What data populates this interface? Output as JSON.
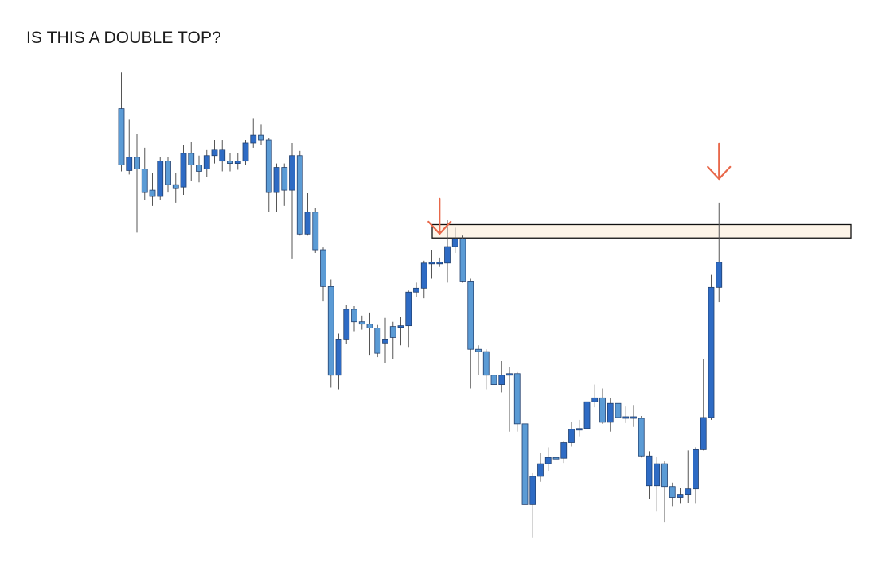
{
  "title": "IS THIS A DOUBLE TOP?",
  "colors": {
    "candle_light": "#5b9bd5",
    "candle_dark": "#2e6bc4",
    "candle_outline": "#22406e",
    "wick": "#555555",
    "arrow": "#e8684a",
    "zone_fill": "#fdf4e8",
    "zone_stroke": "#111111"
  },
  "chart_data": {
    "type": "candlestick",
    "title": "IS THIS A DOUBLE TOP?",
    "xlabel": "",
    "ylabel": "",
    "grid": false,
    "legend": "none",
    "ylim": [
      0,
      700
    ],
    "candles": [
      {
        "o": 530,
        "c": 602,
        "h": 648,
        "l": 522,
        "style": "light"
      },
      {
        "o": 523,
        "c": 540,
        "h": 588,
        "l": 518,
        "style": "dark"
      },
      {
        "o": 540,
        "c": 525,
        "h": 570,
        "l": 444,
        "style": "light"
      },
      {
        "o": 525,
        "c": 495,
        "h": 552,
        "l": 485,
        "style": "light"
      },
      {
        "o": 490,
        "c": 498,
        "h": 520,
        "l": 478,
        "style": "light"
      },
      {
        "o": 490,
        "c": 535,
        "h": 540,
        "l": 485,
        "style": "dark"
      },
      {
        "o": 535,
        "c": 505,
        "h": 540,
        "l": 495,
        "style": "light"
      },
      {
        "o": 500,
        "c": 505,
        "h": 520,
        "l": 482,
        "style": "light"
      },
      {
        "o": 502,
        "c": 545,
        "h": 556,
        "l": 492,
        "style": "dark"
      },
      {
        "o": 545,
        "c": 530,
        "h": 560,
        "l": 510,
        "style": "light"
      },
      {
        "o": 530,
        "c": 522,
        "h": 542,
        "l": 508,
        "style": "light"
      },
      {
        "o": 525,
        "c": 542,
        "h": 550,
        "l": 515,
        "style": "dark"
      },
      {
        "o": 542,
        "c": 550,
        "h": 562,
        "l": 532,
        "style": "dark"
      },
      {
        "o": 550,
        "c": 535,
        "h": 562,
        "l": 522,
        "style": "dark"
      },
      {
        "o": 535,
        "c": 532,
        "h": 545,
        "l": 522,
        "style": "light"
      },
      {
        "o": 532,
        "c": 535,
        "h": 545,
        "l": 524,
        "style": "dark"
      },
      {
        "o": 535,
        "c": 558,
        "h": 562,
        "l": 530,
        "style": "dark"
      },
      {
        "o": 558,
        "c": 568,
        "h": 590,
        "l": 552,
        "style": "dark"
      },
      {
        "o": 568,
        "c": 562,
        "h": 582,
        "l": 556,
        "style": "light"
      },
      {
        "o": 562,
        "c": 495,
        "h": 565,
        "l": 470,
        "style": "light"
      },
      {
        "o": 495,
        "c": 527,
        "h": 532,
        "l": 470,
        "style": "dark"
      },
      {
        "o": 527,
        "c": 498,
        "h": 532,
        "l": 478,
        "style": "light"
      },
      {
        "o": 498,
        "c": 542,
        "h": 558,
        "l": 410,
        "style": "dark"
      },
      {
        "o": 542,
        "c": 442,
        "h": 548,
        "l": 440,
        "style": "light"
      },
      {
        "o": 442,
        "c": 470,
        "h": 494,
        "l": 440,
        "style": "dark"
      },
      {
        "o": 470,
        "c": 422,
        "h": 475,
        "l": 418,
        "style": "light"
      },
      {
        "o": 422,
        "c": 375,
        "h": 425,
        "l": 356,
        "style": "light"
      },
      {
        "o": 375,
        "c": 262,
        "h": 384,
        "l": 246,
        "style": "light"
      },
      {
        "o": 262,
        "c": 308,
        "h": 315,
        "l": 244,
        "style": "dark"
      },
      {
        "o": 308,
        "c": 346,
        "h": 352,
        "l": 302,
        "style": "dark"
      },
      {
        "o": 346,
        "c": 330,
        "h": 350,
        "l": 318,
        "style": "light"
      },
      {
        "o": 330,
        "c": 327,
        "h": 338,
        "l": 320,
        "style": "light"
      },
      {
        "o": 327,
        "c": 322,
        "h": 342,
        "l": 288,
        "style": "light"
      },
      {
        "o": 322,
        "c": 290,
        "h": 326,
        "l": 285,
        "style": "light"
      },
      {
        "o": 303,
        "c": 308,
        "h": 335,
        "l": 278,
        "style": "dark"
      },
      {
        "o": 324,
        "c": 310,
        "h": 330,
        "l": 283,
        "style": "light"
      },
      {
        "o": 324,
        "c": 325,
        "h": 336,
        "l": 300,
        "style": "dark"
      },
      {
        "o": 325,
        "c": 368,
        "h": 370,
        "l": 298,
        "style": "dark"
      },
      {
        "o": 368,
        "c": 373,
        "h": 380,
        "l": 362,
        "style": "dark"
      },
      {
        "o": 373,
        "c": 405,
        "h": 408,
        "l": 360,
        "style": "dark"
      },
      {
        "o": 405,
        "c": 406,
        "h": 422,
        "l": 385,
        "style": "dark"
      },
      {
        "o": 406,
        "c": 406,
        "h": 412,
        "l": 400,
        "style": "dark"
      },
      {
        "o": 405,
        "c": 426,
        "h": 460,
        "l": 380,
        "style": "dark"
      },
      {
        "o": 426,
        "c": 436,
        "h": 450,
        "l": 418,
        "style": "dark"
      },
      {
        "o": 436,
        "c": 382,
        "h": 440,
        "l": 380,
        "style": "light"
      },
      {
        "o": 382,
        "c": 295,
        "h": 385,
        "l": 245,
        "style": "light"
      },
      {
        "o": 295,
        "c": 292,
        "h": 300,
        "l": 262,
        "style": "light"
      },
      {
        "o": 292,
        "c": 262,
        "h": 295,
        "l": 244,
        "style": "light"
      },
      {
        "o": 262,
        "c": 250,
        "h": 286,
        "l": 235,
        "style": "light"
      },
      {
        "o": 250,
        "c": 262,
        "h": 280,
        "l": 240,
        "style": "dark"
      },
      {
        "o": 262,
        "c": 264,
        "h": 272,
        "l": 190,
        "style": "dark"
      },
      {
        "o": 264,
        "c": 200,
        "h": 266,
        "l": 190,
        "style": "light"
      },
      {
        "o": 200,
        "c": 97,
        "h": 202,
        "l": 95,
        "style": "light"
      },
      {
        "o": 97,
        "c": 133,
        "h": 137,
        "l": 55,
        "style": "dark"
      },
      {
        "o": 133,
        "c": 149,
        "h": 163,
        "l": 126,
        "style": "dark"
      },
      {
        "o": 149,
        "c": 157,
        "h": 170,
        "l": 140,
        "style": "dark"
      },
      {
        "o": 157,
        "c": 156,
        "h": 170,
        "l": 152,
        "style": "light"
      },
      {
        "o": 156,
        "c": 176,
        "h": 178,
        "l": 150,
        "style": "dark"
      },
      {
        "o": 176,
        "c": 193,
        "h": 202,
        "l": 171,
        "style": "dark"
      },
      {
        "o": 193,
        "c": 194,
        "h": 205,
        "l": 184,
        "style": "dark"
      },
      {
        "o": 194,
        "c": 228,
        "h": 231,
        "l": 190,
        "style": "dark"
      },
      {
        "o": 228,
        "c": 233,
        "h": 250,
        "l": 221,
        "style": "dark"
      },
      {
        "o": 233,
        "c": 202,
        "h": 245,
        "l": 200,
        "style": "light"
      },
      {
        "o": 202,
        "c": 226,
        "h": 233,
        "l": 190,
        "style": "dark"
      },
      {
        "o": 226,
        "c": 208,
        "h": 229,
        "l": 204,
        "style": "light"
      },
      {
        "o": 208,
        "c": 209,
        "h": 222,
        "l": 201,
        "style": "dark"
      },
      {
        "o": 209,
        "c": 207,
        "h": 224,
        "l": 196,
        "style": "dark"
      },
      {
        "o": 207,
        "c": 159,
        "h": 210,
        "l": 157,
        "style": "light"
      },
      {
        "o": 159,
        "c": 121,
        "h": 165,
        "l": 104,
        "style": "dark"
      },
      {
        "o": 121,
        "c": 149,
        "h": 158,
        "l": 88,
        "style": "dark"
      },
      {
        "o": 149,
        "c": 120,
        "h": 152,
        "l": 75,
        "style": "light"
      },
      {
        "o": 120,
        "c": 106,
        "h": 125,
        "l": 95,
        "style": "light"
      },
      {
        "o": 106,
        "c": 110,
        "h": 118,
        "l": 98,
        "style": "dark"
      },
      {
        "o": 110,
        "c": 117,
        "h": 166,
        "l": 99,
        "style": "dark"
      },
      {
        "o": 117,
        "c": 167,
        "h": 170,
        "l": 98,
        "style": "dark"
      },
      {
        "o": 167,
        "c": 208,
        "h": 283,
        "l": 166,
        "style": "dark"
      },
      {
        "o": 208,
        "c": 374,
        "h": 390,
        "l": 205,
        "style": "dark"
      },
      {
        "o": 374,
        "c": 406,
        "h": 482,
        "l": 355,
        "style": "dark"
      }
    ],
    "resistance_zone": {
      "low": 437,
      "high": 454
    },
    "annotations": [
      {
        "type": "down-arrow",
        "candle_index": 41
      },
      {
        "type": "down-arrow",
        "candle_index": 77
      }
    ]
  }
}
